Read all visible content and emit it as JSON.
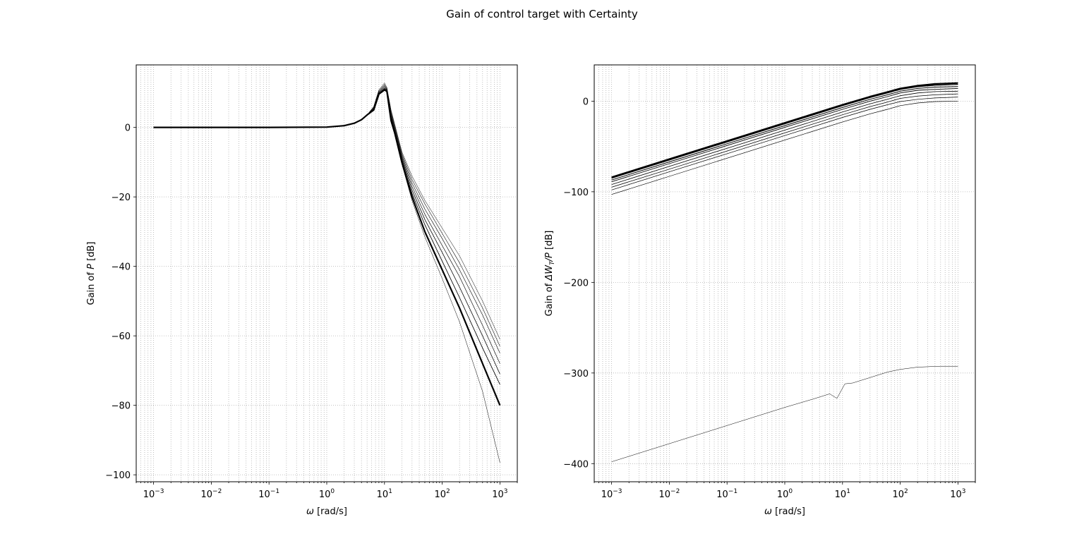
{
  "suptitle": "Gain of control target with Certainty",
  "chart_data": [
    {
      "type": "line",
      "xscale": "log",
      "xlabel_sym": "ω",
      "xlabel_unit": " [rad/s]",
      "ylabel_pre": "Gain of ",
      "ylabel_sym": "P",
      "ylabel_post": " [dB]",
      "xlim": [
        0.0005,
        2000
      ],
      "ylim": [
        -102,
        18
      ],
      "yticks": [
        0,
        -20,
        -40,
        -60,
        -80,
        -100
      ],
      "ytick_labels": [
        "0",
        "−20",
        "−40",
        "−60",
        "−80",
        "−100"
      ],
      "xticks_exp": [
        -3,
        -2,
        -1,
        0,
        1,
        2,
        3
      ],
      "grid": "dotted, major and minor",
      "series": [
        {
          "x": [
            0.001,
            0.1,
            1,
            2,
            3,
            4,
            5,
            6.5,
            8,
            10,
            11,
            13,
            15,
            20,
            30,
            50,
            100,
            200,
            500,
            1000
          ],
          "y": [
            0,
            0,
            0.1,
            0.5,
            1.2,
            2.2,
            3.6,
            6.0,
            10.8,
            12.8,
            11.5,
            5.0,
            1.0,
            -7,
            -14,
            -21,
            -29,
            -37,
            -50,
            -61
          ]
        },
        {
          "x": [
            0.001,
            0.1,
            1,
            2,
            3,
            4,
            5,
            6.5,
            8,
            10,
            11,
            13,
            15,
            20,
            30,
            50,
            100,
            200,
            500,
            1000
          ],
          "y": [
            0,
            0,
            0.1,
            0.5,
            1.2,
            2.2,
            3.6,
            5.8,
            10.5,
            12.3,
            11.2,
            4.5,
            0.5,
            -7.5,
            -15,
            -22,
            -30.5,
            -39,
            -52,
            -63
          ]
        },
        {
          "x": [
            0.001,
            0.1,
            1,
            2,
            3,
            4,
            5,
            6.5,
            8,
            10,
            11,
            13,
            15,
            20,
            30,
            50,
            100,
            200,
            500,
            1000
          ],
          "y": [
            0,
            0,
            0.1,
            0.5,
            1.2,
            2.2,
            3.6,
            5.6,
            10.2,
            11.9,
            11.0,
            4.0,
            0.0,
            -8,
            -16,
            -23.5,
            -32,
            -41,
            -54,
            -65
          ]
        },
        {
          "x": [
            0.001,
            0.1,
            1,
            2,
            3,
            4,
            5,
            6.5,
            8,
            10,
            11,
            13,
            15,
            20,
            30,
            50,
            100,
            200,
            500,
            1000
          ],
          "y": [
            0,
            0,
            0.1,
            0.5,
            1.2,
            2.2,
            3.6,
            5.4,
            10.0,
            11.5,
            10.8,
            3.5,
            -0.5,
            -8.5,
            -17,
            -25,
            -34,
            -43,
            -57,
            -68
          ]
        },
        {
          "x": [
            0.001,
            0.1,
            1,
            2,
            3,
            4,
            5,
            6.5,
            8,
            10,
            11,
            13,
            15,
            20,
            30,
            50,
            100,
            200,
            500,
            1000
          ],
          "y": [
            0,
            0,
            0.1,
            0.5,
            1.2,
            2.2,
            3.6,
            5.2,
            9.8,
            11.2,
            10.6,
            3.0,
            -1.0,
            -9,
            -18,
            -26.5,
            -36,
            -46,
            -60,
            -71
          ]
        },
        {
          "x": [
            0.001,
            0.1,
            1,
            2,
            3,
            4,
            5,
            6.5,
            8,
            10,
            11,
            13,
            15,
            20,
            30,
            50,
            100,
            200,
            500,
            1000
          ],
          "y": [
            0,
            0,
            0.1,
            0.5,
            1.2,
            2.2,
            3.6,
            5.0,
            9.7,
            11.0,
            10.5,
            2.5,
            -1.3,
            -9.5,
            -19,
            -28,
            -38.5,
            -49,
            -63.5,
            -74
          ]
        },
        {
          "x": [
            0.001,
            0.1,
            1,
            2,
            3,
            4,
            5,
            6.5,
            8,
            10,
            11,
            13,
            15,
            20,
            30,
            50,
            100,
            200,
            500,
            1000
          ],
          "y": [
            0,
            0,
            0.1,
            0.5,
            1.2,
            2.2,
            3.6,
            5.0,
            9.6,
            10.8,
            10.4,
            2.0,
            -1.5,
            -10,
            -20,
            -30,
            -41,
            -52,
            -68,
            -80
          ]
        },
        {
          "x": [
            0.001,
            0.1,
            1,
            2,
            3,
            4,
            5,
            6.5,
            8,
            10,
            11,
            13,
            15,
            20,
            30,
            50,
            100,
            200,
            500,
            1000
          ],
          "y": [
            0,
            0,
            0.1,
            0.5,
            1.2,
            2.2,
            3.6,
            5.0,
            9.5,
            10.6,
            10.3,
            1.5,
            -2.0,
            -10.5,
            -21,
            -31.5,
            -43.5,
            -56,
            -76,
            -96.5
          ]
        }
      ]
    },
    {
      "type": "line",
      "xscale": "log",
      "xlabel_sym": "ω",
      "xlabel_unit": " [rad/s]",
      "ylabel_pre": "Gain of ",
      "ylabel_sym": "ΔW",
      "ylabel_sub": "T",
      "ylabel_mid": "/P",
      "ylabel_post": " [dB]",
      "xlim": [
        0.0005,
        2000
      ],
      "ylim": [
        -420,
        40
      ],
      "yticks": [
        0,
        -100,
        -200,
        -300,
        -400
      ],
      "ytick_labels": [
        "0",
        "−100",
        "−200",
        "−300",
        "−400"
      ],
      "xticks_exp": [
        -3,
        -2,
        -1,
        0,
        1,
        2,
        3
      ],
      "grid": "dotted, major and minor",
      "series": [
        {
          "x": [
            0.001,
            0.01,
            0.1,
            1,
            10,
            30,
            60,
            100,
            200,
            400,
            1000
          ],
          "y": [
            -84,
            -64,
            -44,
            -24,
            -4,
            5,
            10,
            14,
            17,
            19,
            20
          ]
        },
        {
          "x": [
            0.001,
            0.01,
            0.1,
            1,
            10,
            30,
            60,
            100,
            200,
            400,
            1000
          ],
          "y": [
            -85,
            -65,
            -45,
            -25,
            -5,
            4,
            9,
            13,
            16,
            17.5,
            18.5
          ]
        },
        {
          "x": [
            0.001,
            0.01,
            0.1,
            1,
            10,
            30,
            60,
            100,
            200,
            400,
            1000
          ],
          "y": [
            -87,
            -67,
            -47,
            -27,
            -7,
            2,
            7,
            11,
            14,
            15.5,
            16
          ]
        },
        {
          "x": [
            0.001,
            0.01,
            0.1,
            1,
            10,
            30,
            60,
            100,
            200,
            400,
            1000
          ],
          "y": [
            -89,
            -69,
            -49,
            -29,
            -9,
            0,
            5,
            9,
            12,
            13,
            14
          ]
        },
        {
          "x": [
            0.001,
            0.01,
            0.1,
            1,
            10,
            30,
            60,
            100,
            200,
            400,
            1000
          ],
          "y": [
            -92,
            -72,
            -52,
            -32,
            -12,
            -3,
            2,
            6,
            9,
            10.5,
            11
          ]
        },
        {
          "x": [
            0.001,
            0.01,
            0.1,
            1,
            10,
            30,
            60,
            100,
            200,
            400,
            1000
          ],
          "y": [
            -95,
            -75,
            -55,
            -35,
            -15,
            -6,
            -1,
            3,
            5.5,
            7,
            8
          ]
        },
        {
          "x": [
            0.001,
            0.01,
            0.1,
            1,
            10,
            30,
            60,
            100,
            200,
            400,
            1000
          ],
          "y": [
            -98,
            -78,
            -58,
            -38,
            -18,
            -9,
            -4,
            -0.5,
            2,
            3.5,
            4.5
          ]
        },
        {
          "x": [
            0.001,
            0.01,
            0.1,
            1,
            10,
            30,
            60,
            100,
            200,
            400,
            1000
          ],
          "y": [
            -103,
            -83,
            -63,
            -43,
            -23,
            -14,
            -9,
            -5,
            -2,
            -0.5,
            0
          ]
        },
        {
          "x": [
            0.001,
            0.01,
            0.1,
            1,
            3,
            6,
            8,
            11,
            15,
            30,
            60,
            100,
            200,
            500,
            1000
          ],
          "y": [
            -398,
            -378,
            -358,
            -338,
            -329,
            -323,
            -328,
            -312,
            -311,
            -305,
            -299,
            -296,
            -293.5,
            -292.5,
            -292.5
          ]
        }
      ]
    }
  ]
}
